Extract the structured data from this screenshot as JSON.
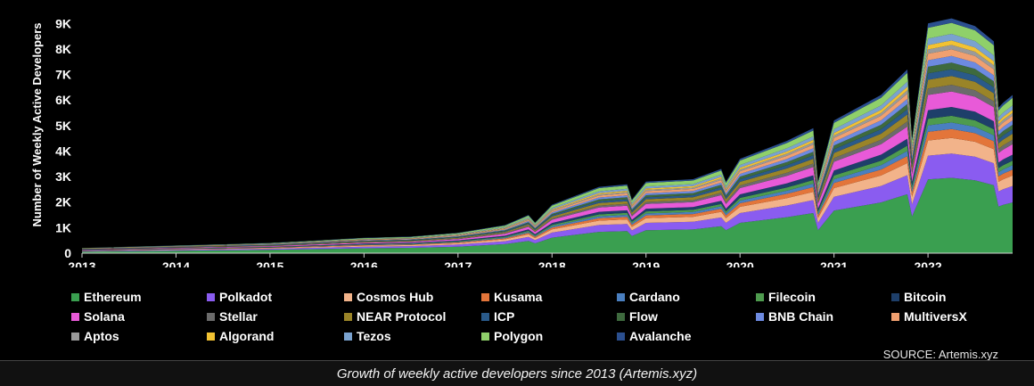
{
  "chart_data": {
    "type": "area",
    "stacked": true,
    "ylabel": "Number of Weekly Active Developers",
    "ylim": [
      0,
      9500
    ],
    "yticks": [
      0,
      1000,
      2000,
      3000,
      4000,
      5000,
      6000,
      7000,
      8000,
      9000
    ],
    "ytick_labels": [
      "0",
      "1K",
      "2K",
      "3K",
      "4K",
      "5K",
      "6K",
      "7K",
      "8K",
      "9K"
    ],
    "xlim": [
      2013,
      2022.9
    ],
    "xticks": [
      2013,
      2014,
      2015,
      2016,
      2017,
      2018,
      2019,
      2020,
      2021,
      2022
    ],
    "x": [
      2013,
      2013.5,
      2014,
      2014.5,
      2015,
      2015.5,
      2016,
      2016.5,
      2017,
      2017.5,
      2017.75,
      2017.82,
      2018,
      2018.5,
      2018.8,
      2018.85,
      2019,
      2019.5,
      2019.8,
      2019.85,
      2020,
      2020.5,
      2020.78,
      2020.83,
      2021,
      2021.5,
      2021.78,
      2021.83,
      2022,
      2022.25,
      2022.5,
      2022.7,
      2022.75,
      2022.8,
      2022.9
    ],
    "total": [
      200,
      250,
      300,
      350,
      400,
      500,
      600,
      650,
      800,
      1100,
      1500,
      1200,
      1900,
      2600,
      2700,
      2100,
      2800,
      2900,
      3300,
      2800,
      3700,
      4400,
      4900,
      2800,
      5200,
      6200,
      7200,
      4500,
      9000,
      9200,
      8900,
      8300,
      5700,
      5900,
      6200
    ],
    "series": [
      {
        "name": "Ethereum",
        "color": "#3a9f50",
        "share": 0.34
      },
      {
        "name": "Polkadot",
        "color": "#8a5cf0",
        "share": 0.11
      },
      {
        "name": "Cosmos Hub",
        "color": "#f2b38a",
        "share": 0.07
      },
      {
        "name": "Kusama",
        "color": "#e3753a",
        "share": 0.04
      },
      {
        "name": "Cardano",
        "color": "#4a7fc0",
        "share": 0.03
      },
      {
        "name": "Filecoin",
        "color": "#4e9b4e",
        "share": 0.03
      },
      {
        "name": "Bitcoin",
        "color": "#1e3f6a",
        "share": 0.04
      },
      {
        "name": "Solana",
        "color": "#e85ad8",
        "share": 0.07
      },
      {
        "name": "Stellar",
        "color": "#6b6b6b",
        "share": 0.03
      },
      {
        "name": "NEAR Protocol",
        "color": "#9a8428",
        "share": 0.04
      },
      {
        "name": "ICP",
        "color": "#2a5a8a",
        "share": 0.03
      },
      {
        "name": "Flow",
        "color": "#3e6a3e",
        "share": 0.03
      },
      {
        "name": "BNB Chain",
        "color": "#6d8ae0",
        "share": 0.03
      },
      {
        "name": "MultiversX",
        "color": "#f0a070",
        "share": 0.03
      },
      {
        "name": "Aptos",
        "color": "#9a9a9a",
        "share": 0.02
      },
      {
        "name": "Algorand",
        "color": "#f2c232",
        "share": 0.02
      },
      {
        "name": "Tezos",
        "color": "#7aa2cf",
        "share": 0.03
      },
      {
        "name": "Polygon",
        "color": "#8fd06a",
        "share": 0.05
      },
      {
        "name": "Avalanche",
        "color": "#2b4f8f",
        "share": 0.02
      }
    ]
  },
  "source": "SOURCE: Artemis.xyz",
  "caption": "Growth of weekly active developers since 2013 (Artemis.xyz)"
}
